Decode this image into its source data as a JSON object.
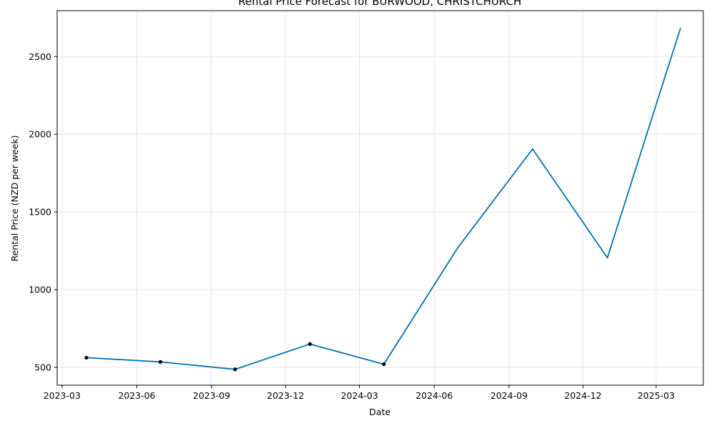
{
  "chart_data": {
    "type": "line",
    "title": "Rental Price Forecast for BURWOOD, CHRISTCHURCH",
    "xlabel": "Date",
    "ylabel": "Rental Price (NZD per week)",
    "x_ticks": [
      "2023-03",
      "2023-06",
      "2023-09",
      "2023-12",
      "2024-03",
      "2024-06",
      "2024-09",
      "2024-12",
      "2025-03"
    ],
    "y_ticks": [
      500,
      1000,
      1500,
      2000,
      2500
    ],
    "xlim": [
      "2023-02-23",
      "2025-04-28"
    ],
    "ylim": [
      385,
      2795
    ],
    "grid": true,
    "line_color": "#0072b2",
    "marker_color": "#000000",
    "series": [
      {
        "x": [
          "2023-03-31",
          "2023-06-30",
          "2023-09-30",
          "2023-12-31",
          "2024-03-31",
          "2024-06-30",
          "2024-09-30",
          "2024-12-31",
          "2025-03-31"
        ],
        "values": [
          562,
          535,
          487,
          650,
          520,
          1270,
          1905,
          1205,
          2683
        ],
        "observed": [
          true,
          true,
          true,
          true,
          true,
          false,
          false,
          false,
          false
        ]
      }
    ]
  }
}
